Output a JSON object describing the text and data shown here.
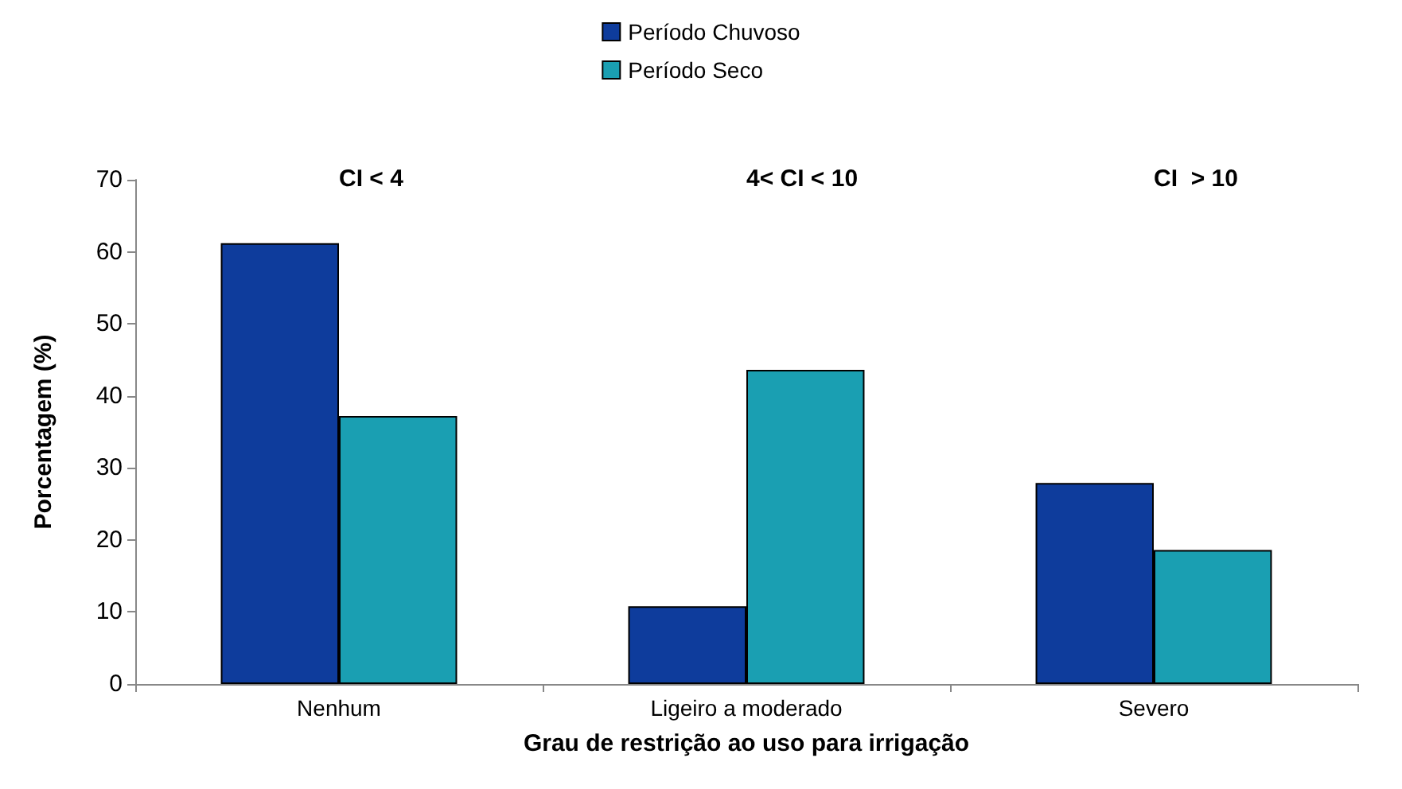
{
  "chart_data": {
    "type": "bar",
    "xlabel": "Grau de restrição ao uso para irrigação",
    "ylabel": "Porcentagem (%)",
    "categories": [
      "Nenhum",
      "Ligeiro a moderado",
      "Severo"
    ],
    "series": [
      {
        "name": "Período Chuvoso",
        "color": "#0e3c9c",
        "values": [
          61.2,
          10.8,
          27.9
        ]
      },
      {
        "name": "Período Seco",
        "color": "#1a9fb2",
        "values": [
          37.2,
          43.6,
          18.6
        ]
      }
    ],
    "annotations": [
      "CI < 4",
      "4< CI < 10",
      "CI  > 10"
    ],
    "ylim": [
      0,
      70
    ],
    "yticks": [
      0,
      10,
      20,
      30,
      40,
      50,
      60,
      70
    ],
    "grid": false,
    "legend": "top"
  }
}
